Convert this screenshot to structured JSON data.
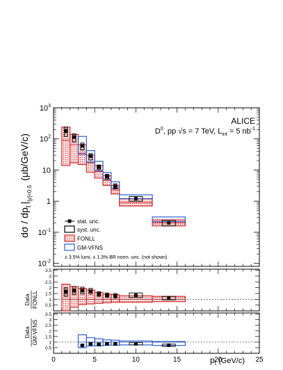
{
  "chart_data": [
    {
      "type": "scatter",
      "role": "spectrum",
      "experiment_label": "ALICE",
      "system_label": "D",
      "system_sup": "0",
      "system_rest": ", pp √s = 7 TeV, L",
      "lumi_sub": "int",
      "lumi_value": " = 5 nb",
      "lumi_sup": "-1",
      "ylabel": "dσ / dp",
      "ylabel_sub": "t",
      "ylabel_sub2": "|y|<0.5",
      "yunit": "(μb/GeV/c)",
      "yscale": "log",
      "ylim": [
        0.008,
        1000
      ],
      "xlim": [
        0,
        25
      ],
      "y_tick_labels": [
        "10^-2",
        "10^-1",
        "1",
        "10",
        "10^2",
        "10^3"
      ],
      "legend_position": "bottom-left",
      "legend": [
        {
          "key": "stat",
          "label": "stat. unc."
        },
        {
          "key": "syst",
          "label": "syst. unc."
        },
        {
          "key": "fonll",
          "label": "FONLL"
        },
        {
          "key": "gmvfns",
          "label": "GM-VFNS"
        }
      ],
      "note": "± 3.5% lumi, ± 1.3% BR norm. unc. (not shown)",
      "bins": [
        {
          "xlo": 1,
          "xhi": 2,
          "x": 1.5,
          "y": 180,
          "stat_lo": 145,
          "stat_hi": 215,
          "syst_lo": 120,
          "syst_hi": 240,
          "fonll_lo": 14,
          "fonll_c": 90,
          "fonll_hi": 240,
          "gm_lo": null,
          "gm_hi": null
        },
        {
          "xlo": 2,
          "xhi": 3,
          "x": 2.5,
          "y": 115,
          "stat_lo": 100,
          "stat_hi": 130,
          "syst_lo": 80,
          "syst_hi": 145,
          "fonll_lo": 17,
          "fonll_c": 65,
          "fonll_hi": 140,
          "gm_lo": null,
          "gm_hi": null
        },
        {
          "xlo": 3,
          "xhi": 4,
          "x": 3.5,
          "y": 60,
          "stat_lo": 54,
          "stat_hi": 66,
          "syst_lo": 44,
          "syst_hi": 74,
          "fonll_lo": 15,
          "fonll_c": 35,
          "fonll_hi": 65,
          "gm_lo": 32,
          "gm_hi": 120
        },
        {
          "xlo": 4,
          "xhi": 5,
          "x": 4.5,
          "y": 28,
          "stat_lo": 25,
          "stat_hi": 31,
          "syst_lo": 21,
          "syst_hi": 34,
          "fonll_lo": 8.5,
          "fonll_c": 17,
          "fonll_hi": 30,
          "gm_lo": 18,
          "gm_hi": 42
        },
        {
          "xlo": 5,
          "xhi": 6,
          "x": 5.5,
          "y": 12.5,
          "stat_lo": 11.5,
          "stat_hi": 13.5,
          "syst_lo": 10.5,
          "syst_hi": 14.5,
          "fonll_lo": 5.5,
          "fonll_c": 9,
          "fonll_hi": 14,
          "gm_lo": 9.5,
          "gm_hi": 19
        },
        {
          "xlo": 6,
          "xhi": 7,
          "x": 6.5,
          "y": 6.2,
          "stat_lo": 5.6,
          "stat_hi": 6.8,
          "syst_lo": 5.1,
          "syst_hi": 7.3,
          "fonll_lo": 3.2,
          "fonll_c": 4.6,
          "fonll_hi": 6.6,
          "gm_lo": 5,
          "gm_hi": 8.3
        },
        {
          "xlo": 7,
          "xhi": 8,
          "x": 7.5,
          "y": 3.0,
          "stat_lo": 2.7,
          "stat_hi": 3.3,
          "syst_lo": 2.5,
          "syst_hi": 3.6,
          "fonll_lo": 1.7,
          "fonll_c": 2.3,
          "fonll_hi": 3.2,
          "gm_lo": 2.6,
          "gm_hi": 4.2
        },
        {
          "xlo": 8,
          "xhi": 12,
          "x": 10,
          "y": 1.2,
          "stat_lo": 1.1,
          "stat_hi": 1.32,
          "syst_lo": 1.0,
          "syst_hi": 1.42,
          "fonll_lo": 0.7,
          "fonll_c": 0.9,
          "fonll_hi": 1.2,
          "gm_lo": 1.2,
          "gm_hi": 1.6
        },
        {
          "xlo": 12,
          "xhi": 16,
          "x": 14,
          "y": 0.2,
          "stat_lo": 0.18,
          "stat_hi": 0.22,
          "syst_lo": 0.16,
          "syst_hi": 0.24,
          "fonll_lo": 0.16,
          "fonll_c": 0.2,
          "fonll_hi": 0.25,
          "gm_lo": 0.22,
          "gm_hi": 0.31
        }
      ]
    },
    {
      "type": "scatter",
      "role": "ratio-fonll",
      "ylabel_top": "Data",
      "ylabel_bottom": "FONLL",
      "ylim": [
        0,
        3.6
      ],
      "ref_line": 1,
      "y_tick_labels": [
        "0.5",
        "1",
        "1.5",
        "2",
        "2.5",
        "3",
        "3.5"
      ],
      "points": [
        {
          "xlo": 1,
          "xhi": 2,
          "x": 1.5,
          "y": 1.65,
          "stat": 0.3,
          "syst_lo": 1.25,
          "syst_hi": 2.0,
          "band_lo": 0.0,
          "band_hi": 2.3
        },
        {
          "xlo": 2,
          "xhi": 3,
          "x": 2.5,
          "y": 1.75,
          "stat": 0.25,
          "syst_lo": 1.4,
          "syst_hi": 2.1,
          "band_lo": 0.3,
          "band_hi": 2.1
        },
        {
          "xlo": 3,
          "xhi": 4,
          "x": 3.5,
          "y": 1.75,
          "stat": 0.15,
          "syst_lo": 1.45,
          "syst_hi": 2.05,
          "band_lo": 0.55,
          "band_hi": 1.95
        },
        {
          "xlo": 4,
          "xhi": 5,
          "x": 4.5,
          "y": 1.7,
          "stat": 0.12,
          "syst_lo": 1.45,
          "syst_hi": 1.95,
          "band_lo": 0.6,
          "band_hi": 1.8
        },
        {
          "xlo": 5,
          "xhi": 6,
          "x": 5.5,
          "y": 1.45,
          "stat": 0.12,
          "syst_lo": 1.25,
          "syst_hi": 1.65,
          "band_lo": 0.65,
          "band_hi": 1.6
        },
        {
          "xlo": 6,
          "xhi": 7,
          "x": 6.5,
          "y": 1.35,
          "stat": 0.12,
          "syst_lo": 1.15,
          "syst_hi": 1.55,
          "band_lo": 0.7,
          "band_hi": 1.45
        },
        {
          "xlo": 7,
          "xhi": 8,
          "x": 7.5,
          "y": 1.3,
          "stat": 0.12,
          "syst_lo": 1.1,
          "syst_hi": 1.5,
          "band_lo": 0.75,
          "band_hi": 1.4
        },
        {
          "xlo": 8,
          "xhi": 12,
          "x": 10,
          "y": 1.35,
          "stat": 0.12,
          "syst_lo": 1.15,
          "syst_hi": 1.55,
          "band_lo": 0.75,
          "band_hi": 1.3
        },
        {
          "xlo": 12,
          "xhi": 16,
          "x": 14,
          "y": 1.1,
          "stat": 0.12,
          "syst_lo": 0.95,
          "syst_hi": 1.25,
          "band_lo": 0.8,
          "band_hi": 1.25
        }
      ]
    },
    {
      "type": "scatter",
      "role": "ratio-gmvfns",
      "ylabel_top": "Data",
      "ylabel_bottom": "GM-VFNS",
      "ylim": [
        0,
        3.6
      ],
      "ref_line": 1,
      "xlim": [
        0,
        25
      ],
      "xlabel": "p",
      "xlabel_sub": "t",
      "xunit": " (GeV/c)",
      "x_tick_labels": [
        "0",
        "5",
        "10",
        "15",
        "20",
        "25"
      ],
      "y_tick_labels": [
        "0.5",
        "1",
        "1.5",
        "2",
        "2.5",
        "3",
        "3.5"
      ],
      "points": [
        {
          "xlo": 3,
          "xhi": 4,
          "x": 3.5,
          "y": 0.7,
          "stat": 0.06,
          "syst_lo": 0.6,
          "syst_hi": 0.82,
          "band_lo": 0.5,
          "band_hi": 1.65
        },
        {
          "xlo": 4,
          "xhi": 5,
          "x": 4.5,
          "y": 0.85,
          "stat": 0.06,
          "syst_lo": 0.72,
          "syst_hi": 0.98,
          "band_lo": 0.65,
          "band_hi": 1.4
        },
        {
          "xlo": 5,
          "xhi": 6,
          "x": 5.5,
          "y": 0.8,
          "stat": 0.06,
          "syst_lo": 0.7,
          "syst_hi": 0.9,
          "band_lo": 0.66,
          "band_hi": 1.3
        },
        {
          "xlo": 6,
          "xhi": 7,
          "x": 6.5,
          "y": 0.85,
          "stat": 0.06,
          "syst_lo": 0.74,
          "syst_hi": 0.96,
          "band_lo": 0.72,
          "band_hi": 1.2
        },
        {
          "xlo": 7,
          "xhi": 8,
          "x": 7.5,
          "y": 0.85,
          "stat": 0.06,
          "syst_lo": 0.74,
          "syst_hi": 0.96,
          "band_lo": 0.72,
          "band_hi": 1.17
        },
        {
          "xlo": 8,
          "xhi": 12,
          "x": 10,
          "y": 0.85,
          "stat": 0.06,
          "syst_lo": 0.75,
          "syst_hi": 0.95,
          "band_lo": 0.75,
          "band_hi": 1.1
        },
        {
          "xlo": 12,
          "xhi": 16,
          "x": 14,
          "y": 0.72,
          "stat": 0.06,
          "syst_lo": 0.62,
          "syst_hi": 0.82,
          "band_lo": 0.7,
          "band_hi": 1.05
        }
      ]
    }
  ],
  "colors": {
    "fonll_line": "#d42a2a",
    "fonll_fill": "#f6caca",
    "gmvfns_line": "#2a5fd4",
    "data": "#000000",
    "ref_line": "#555555"
  }
}
